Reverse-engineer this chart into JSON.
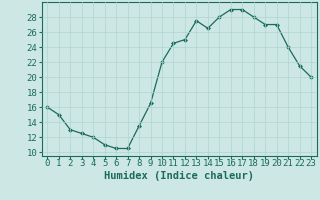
{
  "x": [
    0,
    1,
    2,
    3,
    4,
    5,
    6,
    7,
    8,
    9,
    10,
    11,
    12,
    13,
    14,
    15,
    16,
    17,
    18,
    19,
    20,
    21,
    22,
    23
  ],
  "y": [
    16,
    15,
    13,
    12.5,
    12,
    11,
    10.5,
    10.5,
    13.5,
    16.5,
    22,
    24.5,
    25,
    27.5,
    26.5,
    28,
    29,
    29,
    28,
    27,
    27,
    24,
    21.5,
    20
  ],
  "line_color": "#1a6b5a",
  "marker": "D",
  "marker_size": 2,
  "bg_color": "#cde8e4",
  "grid_color": "#aed4ce",
  "xlabel": "Humidex (Indice chaleur)",
  "xlim": [
    -0.5,
    23.5
  ],
  "ylim": [
    9.5,
    30
  ],
  "yticks": [
    10,
    12,
    14,
    16,
    18,
    20,
    22,
    24,
    26,
    28
  ],
  "xticks": [
    0,
    1,
    2,
    3,
    4,
    5,
    6,
    7,
    8,
    9,
    10,
    11,
    12,
    13,
    14,
    15,
    16,
    17,
    18,
    19,
    20,
    21,
    22,
    23
  ],
  "xlabel_fontsize": 7.5,
  "tick_fontsize": 6.5,
  "linewidth": 0.9
}
